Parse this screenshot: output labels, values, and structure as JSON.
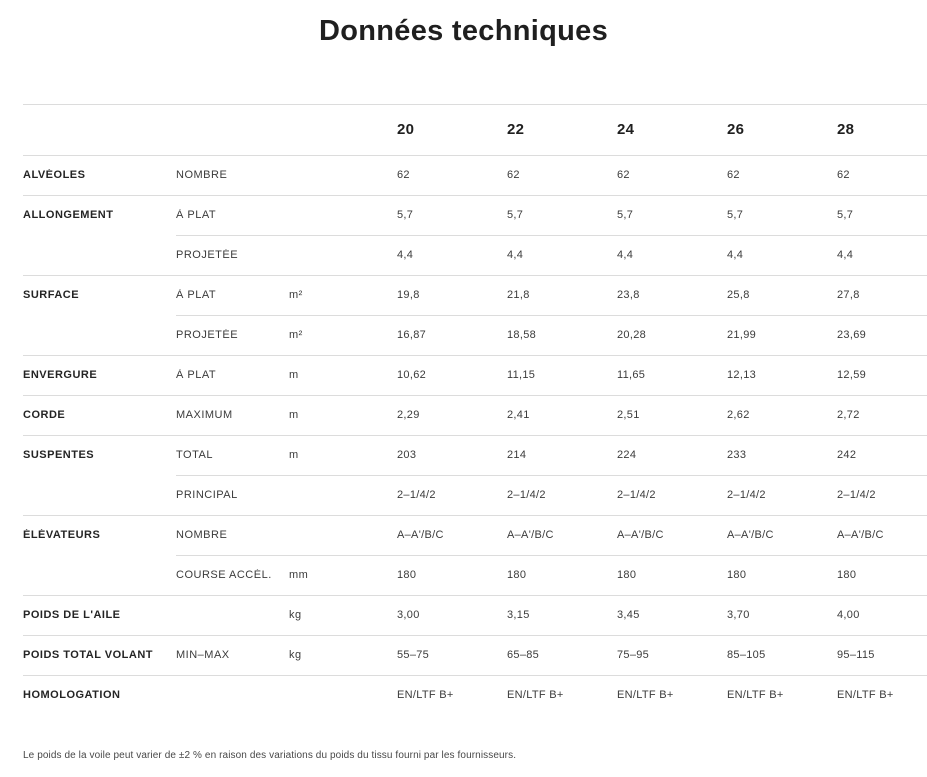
{
  "title": "Données techniques",
  "table": {
    "size_columns": [
      "20",
      "22",
      "24",
      "26",
      "28"
    ],
    "rows": [
      {
        "label": "ALVÉOLES",
        "sublabel": "NOMBRE",
        "unit": "",
        "divider": "full",
        "values": [
          "62",
          "62",
          "62",
          "62",
          "62"
        ]
      },
      {
        "label": "ALLONGEMENT",
        "sublabel": "À PLAT",
        "unit": "",
        "divider": "full",
        "values": [
          "5,7",
          "5,7",
          "5,7",
          "5,7",
          "5,7"
        ]
      },
      {
        "label": "",
        "sublabel": "PROJETÉE",
        "unit": "",
        "divider": "sub",
        "values": [
          "4,4",
          "4,4",
          "4,4",
          "4,4",
          "4,4"
        ]
      },
      {
        "label": "SURFACE",
        "sublabel": "À PLAT",
        "unit": "m²",
        "divider": "full",
        "values": [
          "19,8",
          "21,8",
          "23,8",
          "25,8",
          "27,8"
        ]
      },
      {
        "label": "",
        "sublabel": "PROJETÉE",
        "unit": "m²",
        "divider": "sub",
        "values": [
          "16,87",
          "18,58",
          "20,28",
          "21,99",
          "23,69"
        ]
      },
      {
        "label": "ENVERGURE",
        "sublabel": "À PLAT",
        "unit": "m",
        "divider": "full",
        "values": [
          "10,62",
          "11,15",
          "11,65",
          "12,13",
          "12,59"
        ]
      },
      {
        "label": "CORDE",
        "sublabel": "MAXIMUM",
        "unit": "m",
        "divider": "full",
        "values": [
          "2,29",
          "2,41",
          "2,51",
          "2,62",
          "2,72"
        ]
      },
      {
        "label": "SUSPENTES",
        "sublabel": "TOTAL",
        "unit": "m",
        "divider": "full",
        "values": [
          "203",
          "214",
          "224",
          "233",
          "242"
        ]
      },
      {
        "label": "",
        "sublabel": "PRINCIPAL",
        "unit": "",
        "divider": "sub",
        "values": [
          "2–1/4/2",
          "2–1/4/2",
          "2–1/4/2",
          "2–1/4/2",
          "2–1/4/2"
        ]
      },
      {
        "label": "ÉLÉVATEURS",
        "sublabel": "NOMBRE",
        "unit": "",
        "divider": "full",
        "values": [
          "A–A'/B/C",
          "A–A'/B/C",
          "A–A'/B/C",
          "A–A'/B/C",
          "A–A'/B/C"
        ]
      },
      {
        "label": "",
        "sublabel": "COURSE ACCÉL.",
        "unit": "mm",
        "divider": "sub",
        "values": [
          "180",
          "180",
          "180",
          "180",
          "180"
        ]
      },
      {
        "label": "POIDS DE L'AILE",
        "sublabel": "",
        "unit": "kg",
        "divider": "full",
        "values": [
          "3,00",
          "3,15",
          "3,45",
          "3,70",
          "4,00"
        ]
      },
      {
        "label": "POIDS TOTAL VOLANT",
        "sublabel": "MIN–MAX",
        "unit": "kg",
        "divider": "full",
        "values": [
          "55–75",
          "65–85",
          "75–95",
          "85–105",
          "95–115"
        ]
      },
      {
        "label": "HOMOLOGATION",
        "sublabel": "",
        "unit": "",
        "divider": "full",
        "values": [
          "EN/LTF B+",
          "EN/LTF B+",
          "EN/LTF B+",
          "EN/LTF B+",
          "EN/LTF B+"
        ]
      }
    ]
  },
  "footnote": "Le poids de la voile peut varier de ±2 % en raison des variations du poids du tissu fourni par les fournisseurs."
}
